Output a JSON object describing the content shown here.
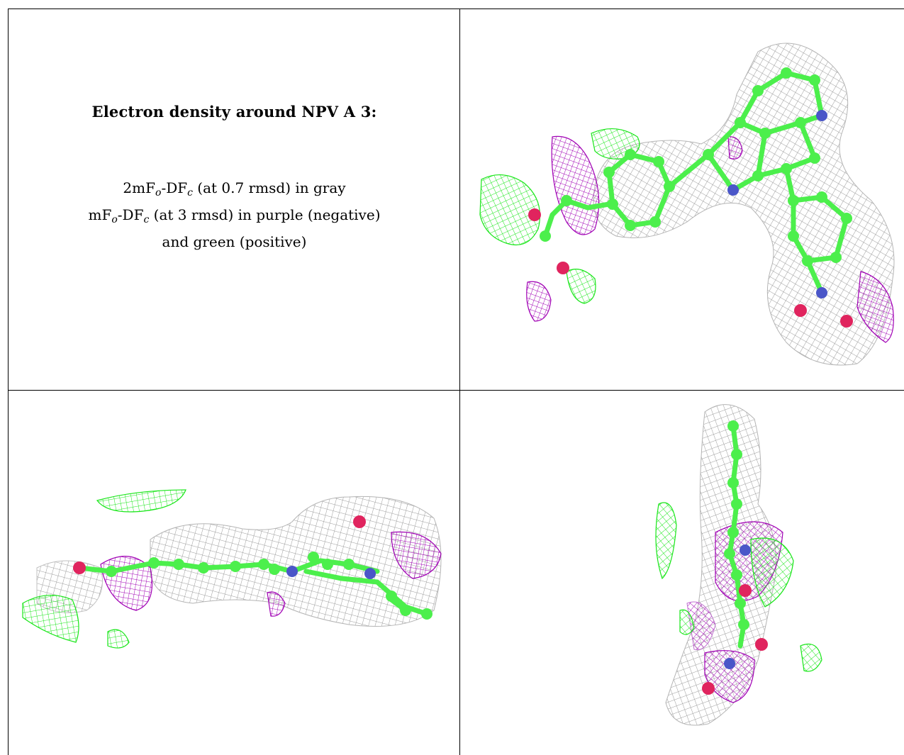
{
  "caption": {
    "title": "Electron density around NPV A 3:",
    "line1_pre": "2mF",
    "line1_sub1": "o",
    "line1_mid": "-DF",
    "line1_sub2": "c",
    "line1_post": " (at 0.7 rmsd) in gray",
    "line2_pre": "mF",
    "line2_sub1": "o",
    "line2_mid": "-DF",
    "line2_sub2": "c",
    "line2_post": " (at 3 rmsd) in purple (negative)",
    "line3": "and green (positive)"
  },
  "legend_colors": {
    "map_2fofc": "#9a9a9a",
    "map_fofc_negative": "#a000b4",
    "map_fofc_positive": "#19e619",
    "carbon": "#4cef4c",
    "nitrogen": "#4a56c8",
    "oxygen": "#e0245e"
  },
  "views": [
    {
      "name": "view-top-right",
      "description_icon": "molecule-density-icon"
    },
    {
      "name": "view-bottom-left",
      "description_icon": "molecule-density-icon"
    },
    {
      "name": "view-bottom-right",
      "description_icon": "molecule-density-icon"
    }
  ]
}
